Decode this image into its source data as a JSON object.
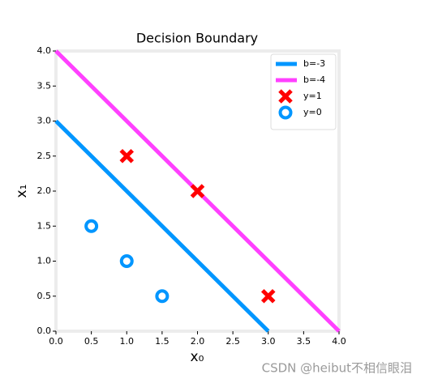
{
  "chart_data": {
    "type": "line",
    "title": "Decision Boundary",
    "xlabel": "x₀",
    "ylabel": "x₁",
    "xlim": [
      0,
      4
    ],
    "ylim": [
      0,
      4
    ],
    "xticks": [
      {
        "value": 0,
        "label": "0.0"
      },
      {
        "value": 0.5,
        "label": "0.5"
      },
      {
        "value": 1,
        "label": "1.0"
      },
      {
        "value": 1.5,
        "label": "1.5"
      },
      {
        "value": 2,
        "label": "2.0"
      },
      {
        "value": 2.5,
        "label": "2.5"
      },
      {
        "value": 3,
        "label": "3.0"
      },
      {
        "value": 3.5,
        "label": "3.5"
      },
      {
        "value": 4,
        "label": "4.0"
      }
    ],
    "yticks": [
      {
        "value": 0,
        "label": "0.0"
      },
      {
        "value": 0.5,
        "label": "0.5"
      },
      {
        "value": 1,
        "label": "1.0"
      },
      {
        "value": 1.5,
        "label": "1.5"
      },
      {
        "value": 2,
        "label": "2.0"
      },
      {
        "value": 2.5,
        "label": "2.5"
      },
      {
        "value": 3,
        "label": "3.0"
      },
      {
        "value": 3.5,
        "label": "3.5"
      },
      {
        "value": 4,
        "label": "4.0"
      }
    ],
    "legend": "upper right",
    "series": [
      {
        "name": "b=-3",
        "type": "line",
        "color": "#0096ff",
        "x": [
          0,
          3
        ],
        "values": [
          3,
          0
        ]
      },
      {
        "name": "b=-4",
        "type": "line",
        "color": "#ff40ff",
        "x": [
          0,
          4
        ],
        "values": [
          4,
          0
        ]
      },
      {
        "name": "y=1",
        "type": "scatter",
        "marker": "x",
        "color": "#ff0000",
        "x": [
          1,
          2,
          3
        ],
        "values": [
          2.5,
          2,
          0.5
        ]
      },
      {
        "name": "y=0",
        "type": "scatter",
        "marker": "o",
        "color": "#0096ff",
        "x": [
          0.5,
          1,
          1.5
        ],
        "values": [
          1.5,
          1,
          0.5
        ]
      }
    ]
  },
  "watermark": "CSDN @heibut不相信眼泪"
}
